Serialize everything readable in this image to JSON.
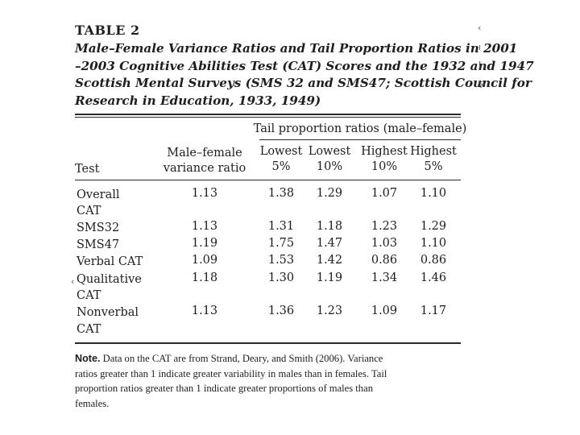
{
  "table": {
    "label": "TABLE 2",
    "title_lines": [
      "Male–Female Variance Ratios and Tail Proportion Ratios in 2001",
      "–2003 Cognitive Abilities Test (CAT) Scores and the 1932 and 1947",
      "Scottish Mental Surveys (SMS 32 and SMS47; Scottish Council for",
      "Research in Education, 1933, 1949)"
    ],
    "spanner_header": "Tail proportion ratios (male–female)",
    "col_test": "Test",
    "col_variance": [
      "Male–female",
      "variance ratio"
    ],
    "col_tail": [
      [
        "Lowest",
        "5%"
      ],
      [
        "Lowest",
        "10%"
      ],
      [
        "Highest",
        "10%"
      ],
      [
        "Highest",
        "5%"
      ]
    ],
    "rows": [
      {
        "test": [
          "Overall",
          "CAT"
        ],
        "variance": "1.13",
        "l5": "1.38",
        "l10": "1.29",
        "h10": "1.07",
        "h5": "1.10"
      },
      {
        "test": [
          "SMS32"
        ],
        "variance": "1.13",
        "l5": "1.31",
        "l10": "1.18",
        "h10": "1.23",
        "h5": "1.29"
      },
      {
        "test": [
          "SMS47"
        ],
        "variance": "1.19",
        "l5": "1.75",
        "l10": "1.47",
        "h10": "1.03",
        "h5": "1.10"
      },
      {
        "test": [
          "Verbal CAT"
        ],
        "variance": "1.09",
        "l5": "1.53",
        "l10": "1.42",
        "h10": "0.86",
        "h5": "0.86"
      },
      {
        "test": [
          "Qualitative",
          "CAT"
        ],
        "variance": "1.18",
        "l5": "1.30",
        "l10": "1.19",
        "h10": "1.34",
        "h5": "1.46"
      },
      {
        "test": [
          "Nonverbal",
          "CAT"
        ],
        "variance": "1.13",
        "l5": "1.36",
        "l10": "1.23",
        "h10": "1.09",
        "h5": "1.17"
      }
    ],
    "note_label": "Note.",
    "note_lines": [
      " Data on the CAT are from Strand, Deary, and Smith (2006). Variance",
      "ratios greater than 1 indicate greater variability in males than in females. Tail",
      "proportion ratios greater than 1 indicate greater proportions of males than",
      "females."
    ]
  },
  "margin_marks": [
    "‹",
    "ı",
    "I",
    "ş",
    "‹"
  ]
}
